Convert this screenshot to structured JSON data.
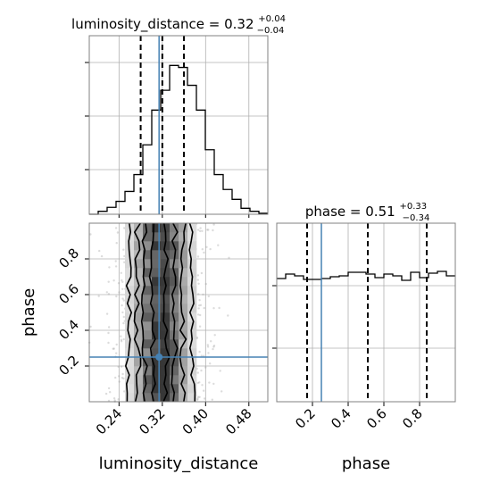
{
  "chart_data": [
    {
      "type": "histogram",
      "panel": "luminosity_distance-marginal",
      "title": "luminosity_distance",
      "title_value": "0.32",
      "title_plus": "+0.04",
      "title_minus": "−0.04",
      "xlim": [
        0.185,
        0.515
      ],
      "grid": true,
      "bins": {
        "start": 0.185,
        "width": 0.0165
      },
      "counts": [
        0,
        0.3,
        0.7,
        1.3,
        2.3,
        4.0,
        7.0,
        10.5,
        12.5,
        15.0,
        14.8,
        13.0,
        10.5,
        6.5,
        4.0,
        2.5,
        1.5,
        0.6,
        0.3,
        0.1
      ],
      "quantiles": [
        0.28,
        0.32,
        0.36
      ],
      "truth": 0.314,
      "line_color": "#000000",
      "truth_color": "#4682b4"
    },
    {
      "type": "histogram",
      "panel": "phase-marginal",
      "title": "phase",
      "title_value": "0.51",
      "title_plus": "+0.33",
      "title_minus": "−0.34",
      "xlim": [
        0.0,
        1.0
      ],
      "xticks": [
        0.2,
        0.4,
        0.6,
        0.8
      ],
      "xticklabels": [
        "0.2",
        "0.4",
        "0.6",
        "0.8"
      ],
      "xlabel": "phase",
      "grid": true,
      "bins": {
        "start": 0.0,
        "width": 0.05
      },
      "counts": [
        6.9,
        7.15,
        7.05,
        6.85,
        6.85,
        6.9,
        7.0,
        7.05,
        7.25,
        7.25,
        7.15,
        6.95,
        7.15,
        7.05,
        6.8,
        7.25,
        6.95,
        7.2,
        7.3,
        7.05
      ],
      "ylim": [
        0,
        10
      ],
      "quantiles": [
        0.17,
        0.51,
        0.84
      ],
      "truth": 0.25,
      "line_color": "#000000",
      "truth_color": "#4682b4"
    },
    {
      "type": "heatmap",
      "panel": "joint-2d",
      "xlim": [
        0.185,
        0.515
      ],
      "ylim": [
        0.0,
        1.0
      ],
      "xticks": [
        0.24,
        0.32,
        0.4,
        0.48
      ],
      "xticklabels": [
        "0.24",
        "0.32",
        "0.40",
        "0.48"
      ],
      "yticks": [
        0.2,
        0.4,
        0.6,
        0.8
      ],
      "yticklabels": [
        "0.2",
        "0.4",
        "0.6",
        "0.8"
      ],
      "xlabel": "luminosity_distance",
      "ylabel": "phase",
      "grid": true,
      "contour_columns": [
        0.258,
        0.274,
        0.287,
        0.302,
        0.328,
        0.343,
        0.358,
        0.376
      ],
      "truth_point": [
        0.314,
        0.25
      ],
      "truth_color": "#4682b4"
    }
  ]
}
